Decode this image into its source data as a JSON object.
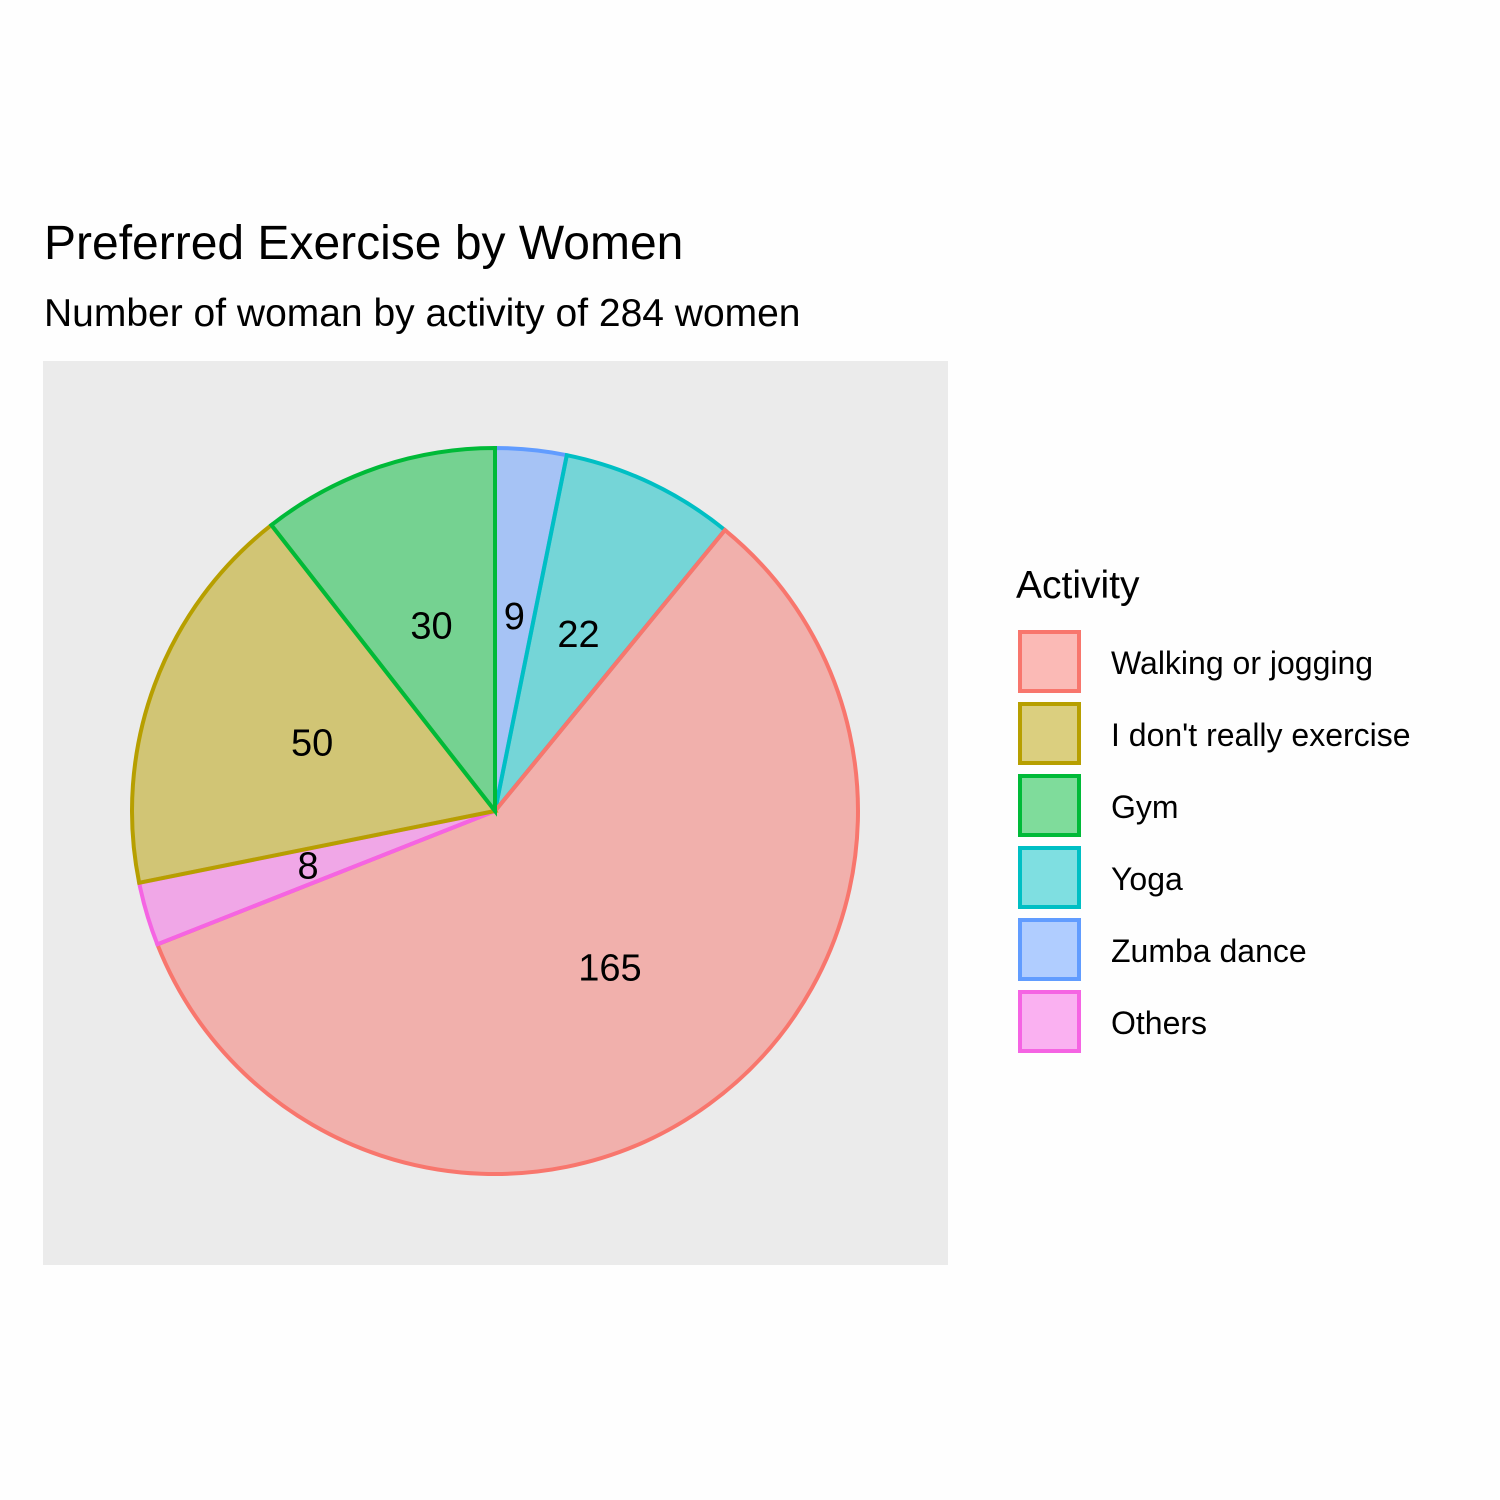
{
  "chart_data": {
    "type": "pie",
    "title": "Preferred Exercise by Women",
    "subtitle": "Number of woman by activity of 284 women",
    "legend": {
      "title": "Activity",
      "position": "right"
    },
    "slices": [
      {
        "label": "Walking or jogging",
        "value": 165,
        "color": "#F8766D"
      },
      {
        "label": "I don't really exercise",
        "value": 50,
        "color": "#B79F00"
      },
      {
        "label": "Gym",
        "value": 30,
        "color": "#00BA38"
      },
      {
        "label": "Yoga",
        "value": 22,
        "color": "#00BFC4"
      },
      {
        "label": "Zumba dance",
        "value": 9,
        "color": "#619CFF"
      },
      {
        "label": "Others",
        "value": 8,
        "color": "#F564E3"
      }
    ],
    "draw_order": [
      "Zumba dance",
      "Yoga",
      "Walking or jogging",
      "Others",
      "I don't really exercise",
      "Gym"
    ],
    "fill_alpha": 0.5,
    "panel_background": "#EBEBEB",
    "grid": false
  }
}
